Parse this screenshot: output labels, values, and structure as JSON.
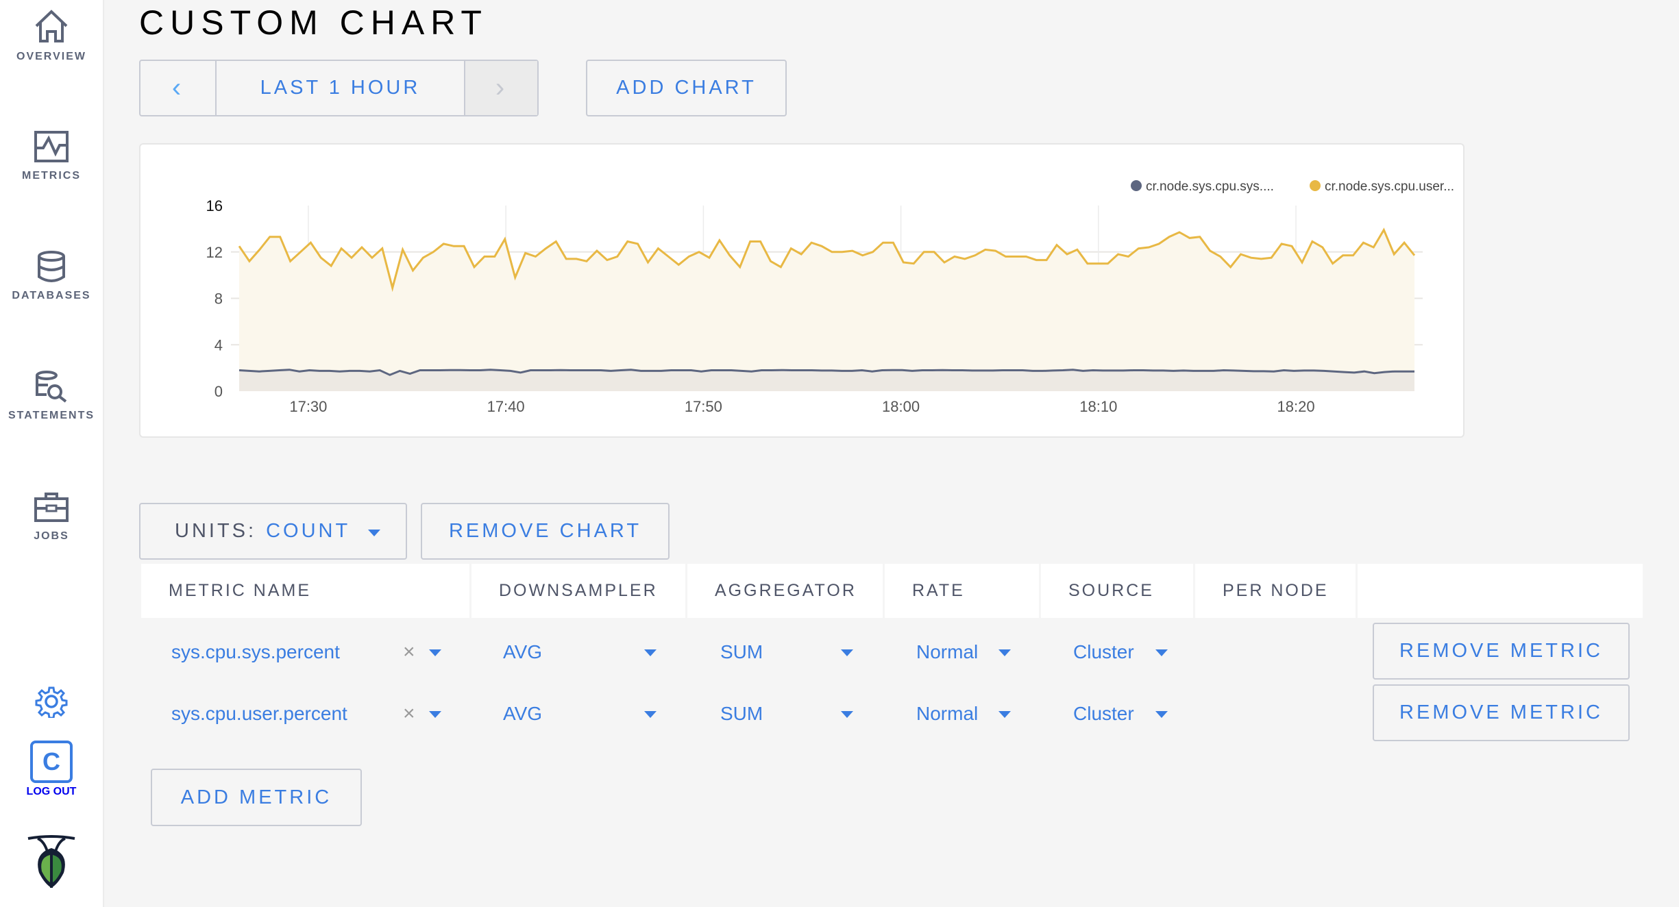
{
  "sidebar": {
    "items": [
      {
        "label": "OVERVIEW",
        "icon": "home-icon"
      },
      {
        "label": "METRICS",
        "icon": "metrics-icon"
      },
      {
        "label": "DATABASES",
        "icon": "database-icon"
      },
      {
        "label": "STATEMENTS",
        "icon": "statements-icon"
      },
      {
        "label": "JOBS",
        "icon": "jobs-icon"
      }
    ],
    "logout_label": "LOG OUT",
    "logout_letter": "C"
  },
  "header": {
    "title": "CUSTOM CHART",
    "time_range": "LAST 1 HOUR",
    "prev": "‹",
    "next": "›",
    "add_chart": "ADD CHART"
  },
  "colors": {
    "accent": "#3a7de1",
    "sys_series": "#5d6680",
    "user_series": "#e8b844"
  },
  "chart_data": {
    "type": "area",
    "grid": true,
    "legend_placement": "top-right",
    "ylim": [
      0,
      16
    ],
    "yticks": [
      "0",
      "4",
      "8",
      "12",
      "16"
    ],
    "x_range": [
      "17:26:30",
      "18:26:00"
    ],
    "sample_interval_seconds": 30,
    "xticks": [
      "17:30",
      "17:40",
      "17:50",
      "18:00",
      "18:10",
      "18:20"
    ],
    "series": [
      {
        "name": "cr.node.sys.cpu.sys....",
        "values": [
          1.8,
          1.75,
          1.7,
          1.75,
          1.8,
          1.85,
          1.7,
          1.8,
          1.75,
          1.75,
          1.7,
          1.75,
          1.75,
          1.7,
          1.8,
          1.4,
          1.75,
          1.5,
          1.8,
          1.8,
          1.8,
          1.82,
          1.82,
          1.8,
          1.8,
          1.85,
          1.8,
          1.75,
          1.6,
          1.8,
          1.8,
          1.8,
          1.82,
          1.8,
          1.8,
          1.8,
          1.8,
          1.75,
          1.8,
          1.85,
          1.75,
          1.75,
          1.75,
          1.8,
          1.8,
          1.8,
          1.7,
          1.8,
          1.8,
          1.8,
          1.75,
          1.7,
          1.8,
          1.8,
          1.82,
          1.8,
          1.8,
          1.8,
          1.78,
          1.78,
          1.75,
          1.75,
          1.8,
          1.7,
          1.8,
          1.82,
          1.82,
          1.75,
          1.8,
          1.8,
          1.82,
          1.8,
          1.8,
          1.78,
          1.78,
          1.78,
          1.8,
          1.8,
          1.8,
          1.75,
          1.75,
          1.78,
          1.8,
          1.85,
          1.75,
          1.8,
          1.78,
          1.78,
          1.78,
          1.8,
          1.8,
          1.78,
          1.78,
          1.75,
          1.78,
          1.75,
          1.75,
          1.75,
          1.8,
          1.78,
          1.75,
          1.72,
          1.72,
          1.7,
          1.8,
          1.75,
          1.78,
          1.78,
          1.75,
          1.7,
          1.65,
          1.6,
          1.7,
          1.55,
          1.65,
          1.7,
          1.7,
          1.7
        ]
      },
      {
        "name": "cr.node.sys.cpu.user...",
        "values": [
          12.5,
          11.2,
          12.2,
          13.3,
          13.3,
          11.2,
          12.0,
          12.8,
          11.5,
          10.8,
          12.3,
          11.5,
          12.4,
          11.5,
          12.3,
          8.9,
          12.2,
          10.4,
          11.5,
          12.0,
          12.7,
          12.5,
          12.5,
          10.7,
          11.6,
          11.6,
          13.1,
          9.8,
          11.9,
          11.6,
          12.3,
          12.9,
          11.4,
          11.4,
          11.2,
          12.1,
          11.3,
          11.6,
          12.9,
          12.7,
          11.1,
          12.3,
          11.6,
          10.9,
          11.6,
          12.0,
          11.5,
          13.0,
          11.7,
          10.7,
          12.9,
          12.9,
          11.2,
          10.7,
          12.3,
          11.8,
          12.8,
          12.5,
          12.0,
          12.0,
          12.1,
          11.7,
          12.0,
          12.8,
          12.8,
          11.1,
          11.0,
          12.0,
          12.0,
          11.1,
          11.6,
          11.4,
          11.7,
          12.2,
          12.1,
          11.6,
          11.6,
          11.6,
          11.3,
          11.3,
          12.6,
          11.8,
          12.2,
          11.0,
          11.0,
          11.0,
          11.8,
          11.6,
          12.3,
          12.4,
          12.7,
          13.3,
          13.7,
          13.2,
          13.3,
          12.1,
          11.6,
          10.7,
          11.8,
          11.5,
          11.4,
          11.5,
          12.7,
          12.5,
          11.1,
          12.9,
          12.4,
          11.0,
          11.7,
          11.7,
          12.8,
          12.4,
          13.9,
          11.8,
          12.8,
          11.7
        ]
      }
    ]
  },
  "controls": {
    "units_label": "UNITS:",
    "units_value": "COUNT",
    "remove_chart": "REMOVE CHART",
    "add_metric": "ADD METRIC"
  },
  "table": {
    "columns": [
      "METRIC NAME",
      "DOWNSAMPLER",
      "AGGREGATOR",
      "RATE",
      "SOURCE",
      "PER NODE",
      ""
    ],
    "rows": [
      {
        "metric": "sys.cpu.sys.percent",
        "clear": "×",
        "downsampler": "AVG",
        "aggregator": "SUM",
        "rate": "Normal",
        "source": "Cluster",
        "per_node": false,
        "remove": "REMOVE METRIC"
      },
      {
        "metric": "sys.cpu.user.percent",
        "clear": "×",
        "downsampler": "AVG",
        "aggregator": "SUM",
        "rate": "Normal",
        "source": "Cluster",
        "per_node": false,
        "remove": "REMOVE METRIC"
      }
    ]
  }
}
